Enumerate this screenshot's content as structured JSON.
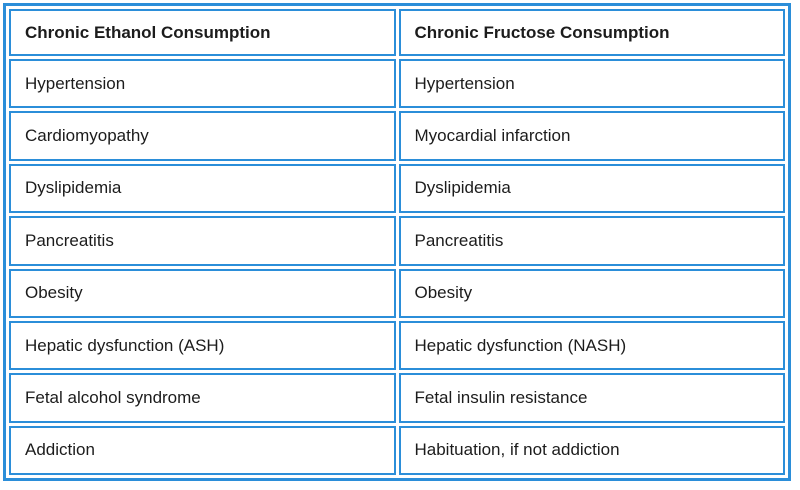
{
  "table": {
    "headers": [
      "Chronic Ethanol Consumption",
      "Chronic Fructose Consumption"
    ],
    "rows": [
      [
        "Hypertension",
        "Hypertension"
      ],
      [
        "Cardiomyopathy",
        "Myocardial infarction"
      ],
      [
        "Dyslipidemia",
        "Dyslipidemia"
      ],
      [
        "Pancreatitis",
        "Pancreatitis"
      ],
      [
        "Obesity",
        "Obesity"
      ],
      [
        "Hepatic dysfunction (ASH)",
        "Hepatic dysfunction (NASH)"
      ],
      [
        "Fetal alcohol syndrome",
        "Fetal insulin resistance"
      ],
      [
        "Addiction",
        "Habituation, if not addiction"
      ]
    ]
  },
  "colors": {
    "border": "#2b8ed9",
    "text": "#1c1c1c",
    "background": "#ffffff"
  }
}
